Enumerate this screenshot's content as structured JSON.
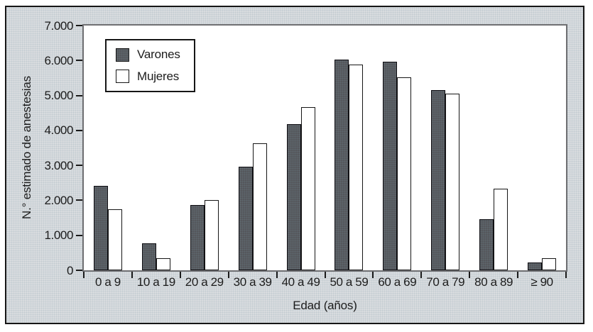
{
  "figure": {
    "background_color": "#d9dcdf",
    "border_color": "#161616",
    "plot_background": "#ffffff"
  },
  "chart_data": {
    "type": "bar",
    "title": "",
    "xlabel": "Edad (años)",
    "ylabel": "N.° estimado de anestesias",
    "categories": [
      "0 a 9",
      "10 a 19",
      "20 a 29",
      "30 a 39",
      "40 a 49",
      "50 a 59",
      "60 a 69",
      "70 a 79",
      "80 a 89",
      "≥ 90"
    ],
    "series": [
      {
        "name": "Varones",
        "color": "#55575c",
        "values": [
          2420,
          780,
          1870,
          2970,
          4180,
          6020,
          5960,
          5150,
          1460,
          230
        ]
      },
      {
        "name": "Mujeres",
        "color": "#ffffff",
        "values": [
          1750,
          350,
          2010,
          3630,
          4670,
          5880,
          5520,
          5050,
          2340,
          350
        ]
      }
    ],
    "ylim": [
      0,
      7000
    ],
    "ytick_step": 1000,
    "ytick_labels": [
      "0",
      "1.000",
      "2.000",
      "3.000",
      "4.000",
      "5.000",
      "6.000",
      "7.000"
    ],
    "grid": false,
    "legend_position": "upper-left-inside"
  },
  "legend": {
    "items": [
      {
        "label": "Varones"
      },
      {
        "label": "Mujeres"
      }
    ]
  }
}
